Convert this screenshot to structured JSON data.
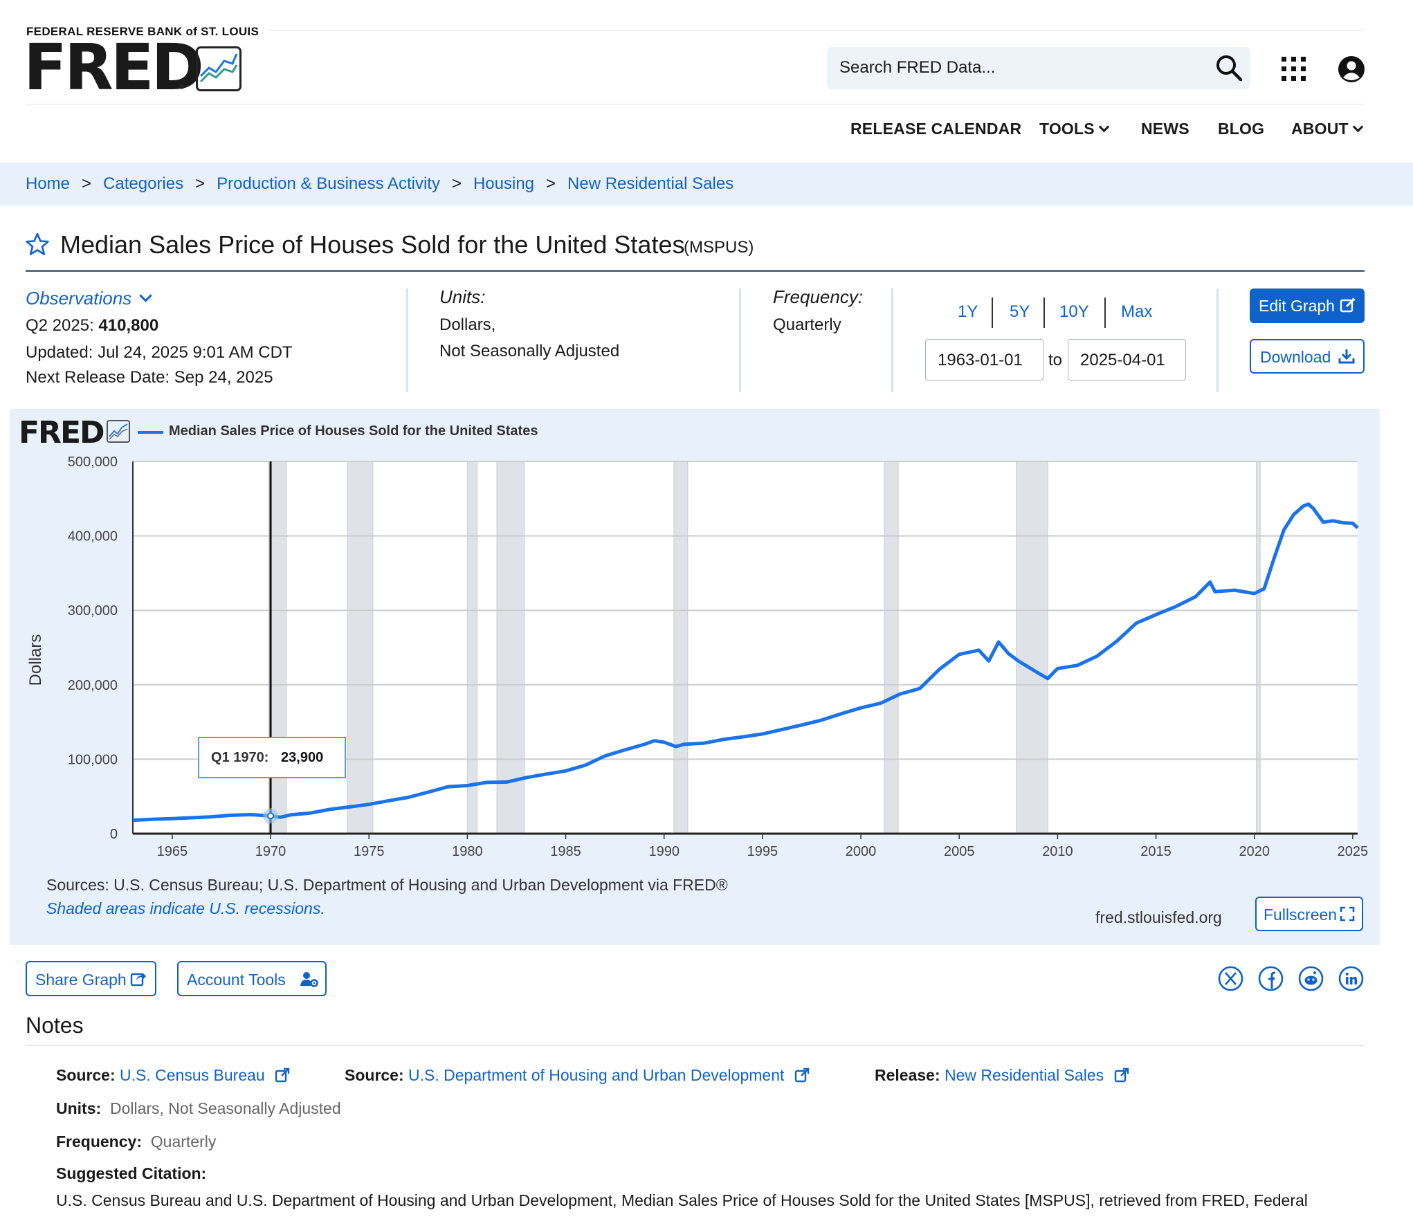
{
  "header": {
    "org_name": "FEDERAL RESERVE BANK of ST. LOUIS",
    "logo_text": "FRED",
    "logo_reg": "®",
    "search_placeholder": "Search FRED Data...",
    "nav": [
      "RELEASE CALENDAR",
      "TOOLS",
      "NEWS",
      "BLOG",
      "ABOUT"
    ]
  },
  "breadcrumb": [
    "Home",
    "Categories",
    "Production & Business Activity",
    "Housing",
    "New Residential Sales"
  ],
  "breadcrumb_sep": ">",
  "series": {
    "title": "Median Sales Price of Houses Sold for the United States",
    "code": "(MSPUS)"
  },
  "meta": {
    "observations_label": "Observations",
    "latest_period": "Q2 2025:",
    "latest_value": "410,800",
    "updated": "Updated: Jul 24, 2025 9:01 AM CDT",
    "next_release": "Next Release Date: Sep 24, 2025",
    "units_label": "Units:",
    "units_line1": "Dollars,",
    "units_line2": "Not Seasonally Adjusted",
    "frequency_label": "Frequency:",
    "frequency_value": "Quarterly",
    "ranges": [
      "1Y",
      "5Y",
      "10Y",
      "Max"
    ],
    "date_from": "1963-01-01",
    "date_to_label": "to",
    "date_to": "2025-04-01",
    "edit_graph": "Edit Graph",
    "download": "Download"
  },
  "graph": {
    "logo_text": "FRED",
    "sources": "Sources: U.S. Census Bureau; U.S. Department of Housing and Urban Development via FRED®",
    "shaded_note": "Shaded areas indicate U.S. recessions.",
    "site_url": "fred.stlouisfed.org",
    "fullscreen": "Fullscreen",
    "tooltip_label": "Q1 1970:",
    "tooltip_value": "23,900",
    "line_color": "#1a73e8"
  },
  "chart_data": {
    "type": "line",
    "title": "",
    "legend": "Median Sales Price of Houses Sold for the United States",
    "xlabel": "",
    "ylabel": "Dollars",
    "ylim": [
      0,
      500000
    ],
    "xlim": [
      1963.0,
      2025.25
    ],
    "yticks": [
      0,
      100000,
      200000,
      300000,
      400000,
      500000
    ],
    "ytick_labels": [
      "0",
      "100,000",
      "200,000",
      "300,000",
      "400,000",
      "500,000"
    ],
    "xticks": [
      1965,
      1970,
      1975,
      1980,
      1985,
      1990,
      1995,
      2000,
      2005,
      2010,
      2015,
      2020,
      2025
    ],
    "grid": true,
    "recessions": [
      [
        1969.9,
        1970.8
      ],
      [
        1973.9,
        1975.2
      ],
      [
        1980.0,
        1980.5
      ],
      [
        1981.5,
        1982.9
      ],
      [
        1990.5,
        1991.2
      ],
      [
        2001.2,
        2001.9
      ],
      [
        2007.9,
        2009.5
      ],
      [
        2020.1,
        2020.3
      ]
    ],
    "series": [
      {
        "name": "Median Sales Price of Houses Sold for the United States",
        "x": [
          1963.0,
          1964.0,
          1965.0,
          1966.0,
          1967.0,
          1968.0,
          1969.0,
          1970.0,
          1970.5,
          1971.0,
          1972.0,
          1973.0,
          1974.0,
          1975.0,
          1976.0,
          1977.0,
          1978.0,
          1979.0,
          1980.0,
          1981.0,
          1982.0,
          1983.0,
          1984.0,
          1985.0,
          1986.0,
          1987.0,
          1988.0,
          1989.0,
          1989.5,
          1990.0,
          1990.6,
          1991.0,
          1992.0,
          1993.0,
          1994.0,
          1995.0,
          1996.0,
          1997.0,
          1998.0,
          1999.0,
          2000.0,
          2001.0,
          2002.0,
          2003.0,
          2004.0,
          2005.0,
          2006.0,
          2006.5,
          2007.0,
          2007.5,
          2008.0,
          2009.0,
          2009.5,
          2010.0,
          2011.0,
          2012.0,
          2013.0,
          2014.0,
          2015.0,
          2016.0,
          2017.0,
          2017.75,
          2018.0,
          2019.0,
          2020.0,
          2020.5,
          2021.0,
          2021.5,
          2022.0,
          2022.5,
          2022.75,
          2023.0,
          2023.5,
          2024.0,
          2024.5,
          2025.0,
          2025.25
        ],
        "values": [
          18000,
          19300,
          20300,
          21400,
          22700,
          24700,
          25600,
          23900,
          22000,
          25200,
          27600,
          32500,
          35900,
          39300,
          44200,
          48800,
          55700,
          62900,
          64600,
          68900,
          69300,
          75300,
          80000,
          84300,
          92000,
          104500,
          112500,
          120000,
          124800,
          122900,
          117000,
          120000,
          121500,
          126500,
          130000,
          133900,
          140000,
          146000,
          152500,
          161000,
          169000,
          175200,
          187600,
          195000,
          221000,
          240900,
          246500,
          232000,
          257400,
          242000,
          232100,
          216000,
          208400,
          221800,
          226000,
          238400,
          258400,
          282800,
          294200,
          305000,
          318000,
          337900,
          325000,
          327000,
          322600,
          329000,
          369800,
          408000,
          428700,
          440300,
          442600,
          436800,
          418500,
          420300,
          417700,
          416900,
          410800
        ]
      }
    ]
  },
  "share": {
    "share_graph": "Share Graph",
    "account_tools": "Account Tools"
  },
  "notes": {
    "heading": "Notes",
    "source1_label": "Source:",
    "source1_value": "U.S. Census Bureau",
    "source2_label": "Source:",
    "source2_value": "U.S. Department of Housing and Urban Development",
    "release_label": "Release:",
    "release_value": "New Residential Sales",
    "units_label": "Units:",
    "units_value": "Dollars, Not Seasonally Adjusted",
    "frequency_label": "Frequency:",
    "frequency_value": "Quarterly",
    "citation_label": "Suggested Citation:",
    "citation_text": "U.S. Census Bureau and U.S. Department of Housing and Urban Development, Median Sales Price of Houses Sold for the United States [MSPUS], retrieved from FRED, Federal"
  }
}
